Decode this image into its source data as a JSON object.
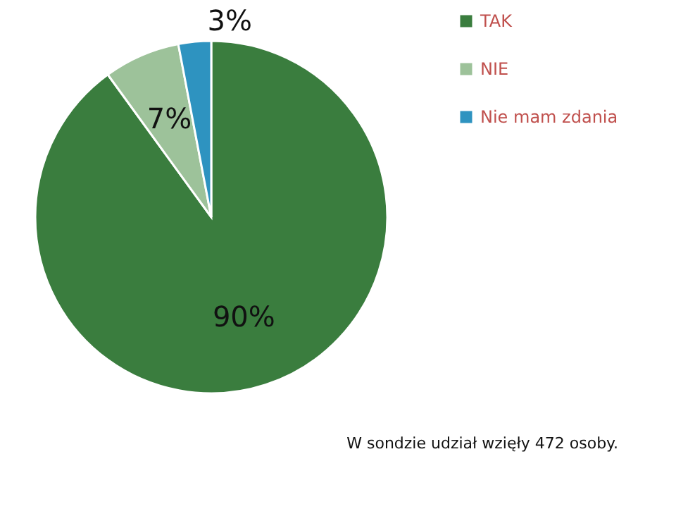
{
  "chart_data": {
    "type": "pie",
    "categories": [
      "TAK",
      "NIE",
      "Nie mam zdania"
    ],
    "values": [
      90,
      7,
      3
    ],
    "colors": [
      "#3a7d3e",
      "#9dc29a",
      "#2e93c0"
    ],
    "value_labels": [
      "90%",
      "7%",
      "3%"
    ],
    "legend": "top right",
    "annotations": [
      "W sondzie udział wzięły 472 osoby."
    ]
  }
}
